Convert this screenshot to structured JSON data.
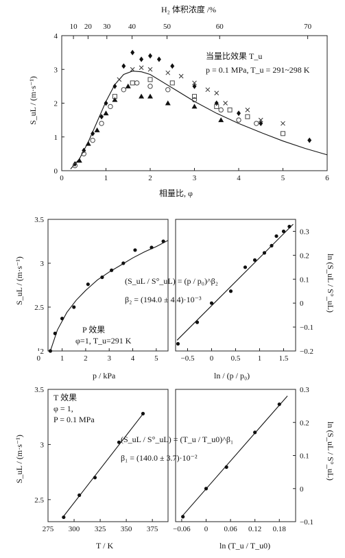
{
  "chart_data": [
    {
      "type": "scatter",
      "xlabel": "相量比, φ",
      "ylabel": "S_uL / (m·s⁻¹)",
      "top_axis_label": "H₂ 体积浓度 /%",
      "xlim": [
        0,
        6
      ],
      "ylim": [
        0,
        4
      ],
      "xticks": [
        "0",
        "1",
        "2",
        "3",
        "4",
        "5",
        "6"
      ],
      "yticks": [
        "0",
        "1",
        "2",
        "3",
        "4"
      ],
      "top_ticks": [
        "10",
        "20",
        "30",
        "40",
        "50",
        "60",
        "70"
      ],
      "top_tick_phi": [
        0.265,
        0.595,
        1.02,
        1.59,
        2.38,
        3.57,
        5.56
      ],
      "annotation_title": "当量比效果 T_u",
      "annotation_cond": "p = 0.1 MPa, T_u = 291~298 K",
      "series": [
        {
          "marker": "diamond",
          "points": [
            [
              0.3,
              0.2
            ],
            [
              0.5,
              0.6
            ],
            [
              0.7,
              1.1
            ],
            [
              0.9,
              1.6
            ],
            [
              1.0,
              2.0
            ],
            [
              1.2,
              2.5
            ],
            [
              1.4,
              3.1
            ],
            [
              1.6,
              3.5
            ],
            [
              1.8,
              3.3
            ],
            [
              2.0,
              3.4
            ],
            [
              2.2,
              3.3
            ],
            [
              2.5,
              3.1
            ],
            [
              3.0,
              2.5
            ],
            [
              3.5,
              2.0
            ],
            [
              4.0,
              1.7
            ],
            [
              4.5,
              1.4
            ],
            [
              5.6,
              0.9
            ]
          ]
        },
        {
          "marker": "triangle",
          "points": [
            [
              0.4,
              0.3
            ],
            [
              0.6,
              0.8
            ],
            [
              0.8,
              1.2
            ],
            [
              1.0,
              1.7
            ],
            [
              1.2,
              2.1
            ],
            [
              1.5,
              2.5
            ],
            [
              1.8,
              2.2
            ],
            [
              2.0,
              2.2
            ],
            [
              2.4,
              2.0
            ],
            [
              3.0,
              1.9
            ],
            [
              3.6,
              1.5
            ]
          ]
        },
        {
          "marker": "cross",
          "points": [
            [
              1.3,
              2.7
            ],
            [
              1.6,
              3.0
            ],
            [
              1.8,
              3.05
            ],
            [
              2.0,
              3.0
            ],
            [
              2.4,
              2.9
            ],
            [
              2.7,
              2.8
            ],
            [
              3.0,
              2.6
            ],
            [
              3.3,
              2.4
            ],
            [
              3.5,
              2.3
            ],
            [
              3.7,
              2.0
            ],
            [
              4.2,
              1.8
            ],
            [
              4.5,
              1.5
            ],
            [
              5.0,
              1.4
            ]
          ]
        },
        {
          "marker": "circle",
          "points": [
            [
              0.3,
              0.15
            ],
            [
              0.5,
              0.5
            ],
            [
              0.7,
              0.9
            ],
            [
              0.9,
              1.4
            ],
            [
              1.1,
              1.9
            ],
            [
              1.4,
              2.4
            ],
            [
              1.7,
              2.6
            ],
            [
              2.0,
              2.5
            ],
            [
              2.4,
              2.4
            ],
            [
              3.0,
              2.1
            ],
            [
              3.6,
              1.8
            ],
            [
              4.0,
              1.5
            ],
            [
              4.4,
              1.4
            ]
          ]
        },
        {
          "marker": "square",
          "points": [
            [
              1.2,
              2.2
            ],
            [
              1.6,
              2.6
            ],
            [
              2.0,
              2.7
            ],
            [
              2.5,
              2.6
            ],
            [
              3.0,
              2.2
            ],
            [
              3.5,
              1.9
            ],
            [
              3.8,
              1.8
            ],
            [
              4.2,
              1.6
            ],
            [
              5.0,
              1.1
            ]
          ]
        }
      ],
      "curve": {
        "x": [
          0.2,
          0.4,
          0.6,
          0.8,
          1.0,
          1.2,
          1.4,
          1.6,
          1.8,
          2.0,
          2.5,
          3.0,
          3.5,
          4.0,
          4.5,
          5.0,
          5.5,
          6.0
        ],
        "y": [
          0.05,
          0.35,
          0.85,
          1.45,
          2.05,
          2.55,
          2.85,
          2.95,
          2.93,
          2.85,
          2.45,
          2.05,
          1.7,
          1.4,
          1.13,
          0.88,
          0.66,
          0.47
        ]
      }
    },
    {
      "type": "scatter",
      "xlabel": "p / kPa",
      "ylabel": "S_uL / (m·s⁻¹)",
      "xlim": [
        0.4,
        5.5
      ],
      "ylim": [
        2,
        3.5
      ],
      "xticks": [
        "0",
        "1",
        "2",
        "3",
        "4",
        "5"
      ],
      "yticks": [
        "2",
        "2.5",
        "3",
        "3.5"
      ],
      "annotation_title": "P 效果",
      "annotation_cond": "φ=1, T_u=291 K",
      "points": [
        [
          0.5,
          2.0
        ],
        [
          0.7,
          2.2
        ],
        [
          1.0,
          2.37
        ],
        [
          1.5,
          2.5
        ],
        [
          2.1,
          2.76
        ],
        [
          2.7,
          2.84
        ],
        [
          3.1,
          2.92
        ],
        [
          3.6,
          3.0
        ],
        [
          4.1,
          3.15
        ],
        [
          4.8,
          3.18
        ],
        [
          5.3,
          3.25
        ]
      ],
      "curve": {
        "x": [
          0.5,
          0.8,
          1.2,
          1.6,
          2.0,
          2.5,
          3.0,
          3.5,
          4.0,
          4.5,
          5.0,
          5.5
        ],
        "y": [
          2.0,
          2.24,
          2.44,
          2.58,
          2.69,
          2.81,
          2.9,
          2.98,
          3.06,
          3.13,
          3.19,
          3.26
        ]
      }
    },
    {
      "type": "line",
      "xlabel": "ln / (p / p₀)",
      "ylabel": "ln (S_uL / S°_uL)",
      "xlim": [
        -0.75,
        1.75
      ],
      "ylim": [
        -0.2,
        0.35
      ],
      "xticks": [
        "−0.5",
        "0",
        "0.5",
        "1",
        "1.5"
      ],
      "yticks": [
        "0.3",
        "0.2",
        "0.1",
        "0",
        "−0.1",
        "−0.2"
      ],
      "equation": "(S_uL / S°_uL) = (p / p₀)^β₂",
      "beta": "β₂ = (194.0 ± 4.4)·10⁻³",
      "points": [
        [
          -0.7,
          -0.17
        ],
        [
          -0.3,
          -0.08
        ],
        [
          0.0,
          0.0
        ],
        [
          0.4,
          0.05
        ],
        [
          0.7,
          0.15
        ],
        [
          0.9,
          0.18
        ],
        [
          1.1,
          0.21
        ],
        [
          1.25,
          0.24
        ],
        [
          1.35,
          0.28
        ],
        [
          1.5,
          0.3
        ],
        [
          1.62,
          0.32
        ]
      ],
      "fit": {
        "x": [
          -0.72,
          1.7
        ],
        "y": [
          -0.155,
          0.33
        ]
      }
    },
    {
      "type": "line",
      "xlabel": "T / K",
      "ylabel": "S_uL / (m·s⁻¹)",
      "xlim": [
        275,
        390
      ],
      "ylim": [
        2.3,
        3.5
      ],
      "xticks": [
        "275",
        "300",
        "325",
        "350",
        "375"
      ],
      "yticks": [
        "2.5",
        "3",
        "3.5"
      ],
      "annotation_title": "T 效果",
      "annotation_cond1": "φ = 1,",
      "annotation_cond2": "P = 0.1 MPa",
      "points": [
        [
          290,
          2.34
        ],
        [
          305,
          2.54
        ],
        [
          320,
          2.7
        ],
        [
          343,
          3.02
        ],
        [
          366,
          3.28
        ]
      ],
      "fit": {
        "x": [
          290,
          367
        ],
        "y": [
          2.35,
          3.29
        ]
      }
    },
    {
      "type": "line",
      "xlabel": "ln (T_u / T_u0)",
      "ylabel": "ln (S_uL / S°_uL)",
      "xlim": [
        -0.075,
        0.22
      ],
      "ylim": [
        -0.1,
        0.3
      ],
      "xticks": [
        "−0.06",
        "0",
        "0.06",
        "0.12",
        "0.18"
      ],
      "yticks": [
        "0.3",
        "0.2",
        "0.1",
        "0",
        "−0.1"
      ],
      "equation": "(S_uL / S°_uL) = (T_u / T_u0)^β₁",
      "beta": "β₁ = (140.0 ± 3.7)·10⁻²",
      "points": [
        [
          -0.057,
          -0.085
        ],
        [
          0.0,
          0.0
        ],
        [
          0.05,
          0.065
        ],
        [
          0.12,
          0.17
        ],
        [
          0.18,
          0.255
        ]
      ],
      "fit": {
        "x": [
          -0.06,
          0.2
        ],
        "y": [
          -0.085,
          0.28
        ]
      }
    }
  ]
}
